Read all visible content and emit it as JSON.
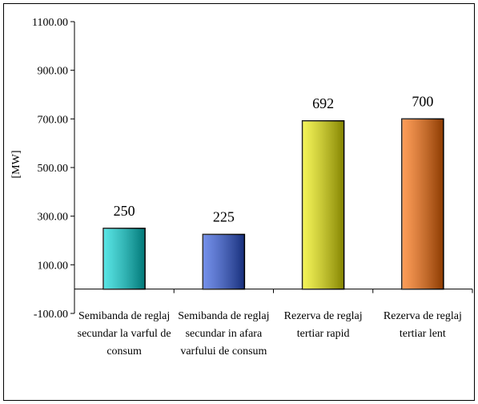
{
  "chart_data": {
    "type": "bar",
    "y_label": "[MW]",
    "categories": [
      "Semibanda de reglaj secundar la varful de consum",
      "Semibanda de reglaj secundar in afara varfului de consum",
      "Rezerva de reglaj tertiar rapid",
      "Rezerva de reglaj tertiar lent"
    ],
    "values": [
      250,
      225,
      692,
      700
    ],
    "colors": [
      "#00d8d8",
      "#2a55e0",
      "#f0f000",
      "#ff6a00"
    ],
    "ylim": [
      -100,
      1100
    ],
    "yticks": [
      {
        "value": -100,
        "label": "-100.00"
      },
      {
        "value": 100,
        "label": "100.00"
      },
      {
        "value": 300,
        "label": "300.00"
      },
      {
        "value": 500,
        "label": "500.00"
      },
      {
        "value": 700,
        "label": "700.00"
      },
      {
        "value": 900,
        "label": "900.00"
      },
      {
        "value": 1100,
        "label": "1100.00"
      }
    ],
    "grid": false
  }
}
